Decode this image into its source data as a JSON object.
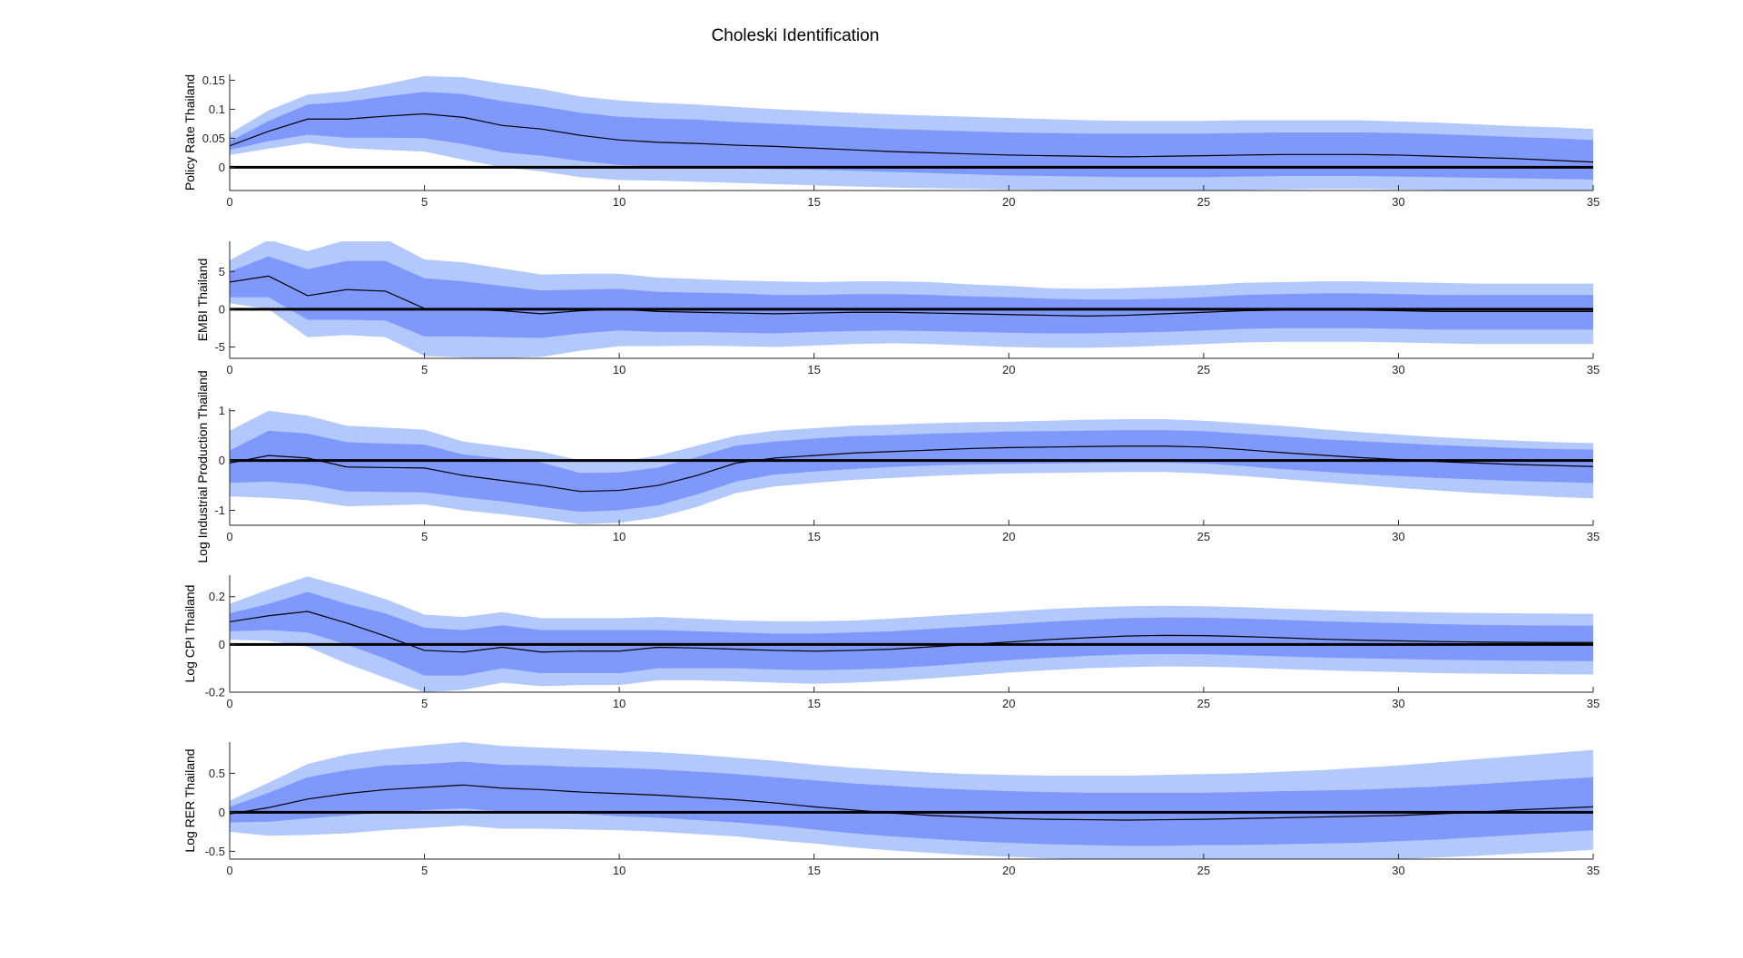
{
  "title": "Choleski Identification",
  "colors": {
    "outer_band": "#b3c9fb",
    "inner_band": "#7e99fb",
    "median": "#000000",
    "zero_line": "#000000",
    "axis": "#262626"
  },
  "chart_data": [
    {
      "type": "area",
      "ylabel": "Policy Rate Thailand",
      "xlim": [
        0,
        35
      ],
      "ylim": [
        -0.04,
        0.16
      ],
      "xticks": [
        0,
        5,
        10,
        15,
        20,
        25,
        30,
        35
      ],
      "yticks": [
        0,
        0.05,
        0.1,
        0.15
      ],
      "ytick_labels": [
        "0",
        "0.05",
        "0.1",
        "0.15"
      ],
      "x": [
        0,
        1,
        2,
        3,
        4,
        5,
        6,
        7,
        8,
        9,
        10,
        11,
        12,
        13,
        14,
        15,
        16,
        17,
        18,
        19,
        20,
        21,
        22,
        23,
        24,
        25,
        26,
        27,
        28,
        29,
        30,
        31,
        32,
        33,
        34,
        35
      ],
      "median": [
        0.037,
        0.062,
        0.083,
        0.083,
        0.088,
        0.092,
        0.086,
        0.072,
        0.066,
        0.055,
        0.047,
        0.043,
        0.041,
        0.038,
        0.036,
        0.033,
        0.03,
        0.027,
        0.025,
        0.023,
        0.021,
        0.02,
        0.019,
        0.018,
        0.019,
        0.02,
        0.021,
        0.022,
        0.022,
        0.022,
        0.021,
        0.019,
        0.017,
        0.015,
        0.012,
        0.009
      ],
      "inner_upper": [
        0.045,
        0.08,
        0.108,
        0.113,
        0.122,
        0.13,
        0.126,
        0.114,
        0.105,
        0.094,
        0.087,
        0.084,
        0.082,
        0.078,
        0.075,
        0.072,
        0.069,
        0.066,
        0.064,
        0.062,
        0.06,
        0.059,
        0.058,
        0.058,
        0.058,
        0.058,
        0.059,
        0.06,
        0.06,
        0.06,
        0.059,
        0.057,
        0.055,
        0.052,
        0.05,
        0.047
      ],
      "inner_lower": [
        0.03,
        0.045,
        0.056,
        0.051,
        0.051,
        0.05,
        0.04,
        0.026,
        0.02,
        0.011,
        0.004,
        0.001,
        0.0,
        -0.002,
        -0.003,
        -0.004,
        -0.006,
        -0.008,
        -0.01,
        -0.012,
        -0.014,
        -0.015,
        -0.016,
        -0.017,
        -0.017,
        -0.017,
        -0.016,
        -0.015,
        -0.015,
        -0.015,
        -0.016,
        -0.017,
        -0.018,
        -0.019,
        -0.02,
        -0.021
      ],
      "outer_upper": [
        0.058,
        0.098,
        0.125,
        0.131,
        0.143,
        0.157,
        0.155,
        0.144,
        0.135,
        0.122,
        0.115,
        0.111,
        0.108,
        0.104,
        0.1,
        0.097,
        0.094,
        0.091,
        0.089,
        0.087,
        0.085,
        0.083,
        0.081,
        0.08,
        0.08,
        0.08,
        0.081,
        0.081,
        0.081,
        0.081,
        0.079,
        0.077,
        0.074,
        0.071,
        0.069,
        0.066
      ],
      "outer_lower": [
        0.021,
        0.032,
        0.042,
        0.033,
        0.03,
        0.027,
        0.013,
        0.0,
        -0.007,
        -0.017,
        -0.022,
        -0.023,
        -0.025,
        -0.027,
        -0.029,
        -0.031,
        -0.033,
        -0.035,
        -0.036,
        -0.037,
        -0.038,
        -0.039,
        -0.04,
        -0.04,
        -0.04,
        -0.04,
        -0.039,
        -0.038,
        -0.037,
        -0.037,
        -0.038,
        -0.039,
        -0.04,
        -0.04,
        -0.04,
        -0.04
      ]
    },
    {
      "type": "area",
      "ylabel": "EMBI Thailand",
      "xlim": [
        0,
        35
      ],
      "ylim": [
        -6.5,
        9
      ],
      "xticks": [
        0,
        5,
        10,
        15,
        20,
        25,
        30,
        35
      ],
      "yticks": [
        -5,
        0,
        5
      ],
      "ytick_labels": [
        "-5",
        "0",
        "5"
      ],
      "x": [
        0,
        1,
        2,
        3,
        4,
        5,
        6,
        7,
        8,
        9,
        10,
        11,
        12,
        13,
        14,
        15,
        16,
        17,
        18,
        19,
        20,
        21,
        22,
        23,
        24,
        25,
        26,
        27,
        28,
        29,
        30,
        31,
        32,
        33,
        34,
        35
      ],
      "median": [
        3.6,
        4.4,
        1.8,
        2.6,
        2.4,
        0.1,
        0.0,
        -0.2,
        -0.6,
        -0.2,
        0.0,
        -0.3,
        -0.4,
        -0.5,
        -0.6,
        -0.5,
        -0.4,
        -0.4,
        -0.5,
        -0.6,
        -0.7,
        -0.8,
        -0.9,
        -0.8,
        -0.6,
        -0.4,
        -0.2,
        -0.1,
        -0.1,
        -0.1,
        -0.2,
        -0.3,
        -0.3,
        -0.3,
        -0.3,
        -0.3
      ],
      "inner_upper": [
        5.0,
        7.0,
        5.3,
        6.4,
        6.4,
        4.1,
        3.7,
        3.1,
        2.5,
        2.6,
        2.7,
        2.3,
        2.2,
        2.1,
        1.9,
        1.9,
        2.0,
        2.0,
        1.9,
        1.7,
        1.6,
        1.4,
        1.3,
        1.3,
        1.4,
        1.6,
        1.9,
        2.0,
        2.1,
        2.1,
        2.0,
        1.9,
        1.9,
        1.9,
        1.9,
        1.9
      ],
      "inner_lower": [
        1.6,
        1.6,
        -1.4,
        -1.4,
        -1.5,
        -3.6,
        -3.6,
        -3.7,
        -3.8,
        -3.2,
        -2.8,
        -3.0,
        -3.0,
        -3.1,
        -3.2,
        -3.0,
        -2.9,
        -2.8,
        -2.9,
        -3.0,
        -3.1,
        -3.2,
        -3.2,
        -3.1,
        -3.0,
        -2.8,
        -2.6,
        -2.5,
        -2.5,
        -2.5,
        -2.6,
        -2.7,
        -2.7,
        -2.7,
        -2.7,
        -2.7
      ],
      "outer_upper": [
        6.5,
        9.2,
        7.7,
        9.2,
        9.3,
        6.6,
        6.2,
        5.4,
        4.6,
        4.7,
        4.7,
        4.2,
        4.0,
        3.8,
        3.7,
        3.6,
        3.7,
        3.7,
        3.6,
        3.3,
        3.1,
        2.8,
        2.7,
        2.8,
        3.0,
        3.2,
        3.5,
        3.6,
        3.7,
        3.7,
        3.6,
        3.5,
        3.4,
        3.4,
        3.4,
        3.4
      ],
      "outer_lower": [
        0.8,
        0.0,
        -3.7,
        -3.4,
        -3.7,
        -6.2,
        -6.4,
        -6.5,
        -6.3,
        -5.5,
        -4.9,
        -4.9,
        -4.8,
        -4.9,
        -5.0,
        -4.8,
        -4.6,
        -4.5,
        -4.6,
        -4.8,
        -5.0,
        -5.1,
        -5.1,
        -5.0,
        -4.8,
        -4.6,
        -4.4,
        -4.3,
        -4.3,
        -4.3,
        -4.4,
        -4.5,
        -4.6,
        -4.6,
        -4.6,
        -4.6
      ]
    },
    {
      "type": "area",
      "ylabel": "Log Industrial Production Thailand",
      "xlim": [
        0,
        35
      ],
      "ylim": [
        -1.3,
        1.05
      ],
      "xticks": [
        0,
        5,
        10,
        15,
        20,
        25,
        30,
        35
      ],
      "yticks": [
        -1,
        0,
        1
      ],
      "ytick_labels": [
        "-1",
        "0",
        "1"
      ],
      "x": [
        0,
        1,
        2,
        3,
        4,
        5,
        6,
        7,
        8,
        9,
        10,
        11,
        12,
        13,
        14,
        15,
        16,
        17,
        18,
        19,
        20,
        21,
        22,
        23,
        24,
        25,
        26,
        27,
        28,
        29,
        30,
        31,
        32,
        33,
        34,
        35
      ],
      "median": [
        -0.05,
        0.1,
        0.05,
        -0.13,
        -0.14,
        -0.15,
        -0.3,
        -0.4,
        -0.5,
        -0.62,
        -0.6,
        -0.5,
        -0.3,
        -0.05,
        0.05,
        0.1,
        0.15,
        0.18,
        0.21,
        0.24,
        0.26,
        0.27,
        0.28,
        0.29,
        0.29,
        0.27,
        0.22,
        0.16,
        0.11,
        0.06,
        0.02,
        -0.02,
        -0.05,
        -0.08,
        -0.1,
        -0.12
      ],
      "inner_upper": [
        0.2,
        0.6,
        0.54,
        0.37,
        0.34,
        0.32,
        0.12,
        0.04,
        -0.04,
        -0.25,
        -0.24,
        -0.14,
        0.07,
        0.3,
        0.38,
        0.44,
        0.49,
        0.51,
        0.54,
        0.56,
        0.58,
        0.59,
        0.6,
        0.61,
        0.61,
        0.59,
        0.54,
        0.49,
        0.43,
        0.39,
        0.35,
        0.31,
        0.28,
        0.25,
        0.23,
        0.22
      ],
      "inner_lower": [
        -0.45,
        -0.42,
        -0.48,
        -0.62,
        -0.63,
        -0.64,
        -0.74,
        -0.82,
        -0.93,
        -1.03,
        -1.0,
        -0.9,
        -0.68,
        -0.42,
        -0.28,
        -0.22,
        -0.17,
        -0.13,
        -0.1,
        -0.08,
        -0.07,
        -0.06,
        -0.05,
        -0.04,
        -0.04,
        -0.06,
        -0.11,
        -0.17,
        -0.22,
        -0.27,
        -0.31,
        -0.35,
        -0.38,
        -0.41,
        -0.43,
        -0.45
      ],
      "outer_upper": [
        0.6,
        1.0,
        0.9,
        0.7,
        0.66,
        0.62,
        0.38,
        0.28,
        0.18,
        0.0,
        -0.02,
        0.1,
        0.3,
        0.5,
        0.6,
        0.65,
        0.7,
        0.72,
        0.75,
        0.77,
        0.78,
        0.8,
        0.82,
        0.83,
        0.83,
        0.8,
        0.75,
        0.7,
        0.63,
        0.57,
        0.52,
        0.47,
        0.43,
        0.4,
        0.37,
        0.35
      ],
      "outer_lower": [
        -0.72,
        -0.75,
        -0.8,
        -0.92,
        -0.9,
        -0.88,
        -1.0,
        -1.08,
        -1.17,
        -1.28,
        -1.25,
        -1.14,
        -0.93,
        -0.65,
        -0.52,
        -0.45,
        -0.39,
        -0.35,
        -0.31,
        -0.28,
        -0.26,
        -0.25,
        -0.24,
        -0.23,
        -0.23,
        -0.26,
        -0.31,
        -0.37,
        -0.43,
        -0.49,
        -0.55,
        -0.6,
        -0.65,
        -0.69,
        -0.73,
        -0.76
      ]
    },
    {
      "type": "area",
      "ylabel": "Log CPI Thailand",
      "xlim": [
        0,
        35
      ],
      "ylim": [
        -0.2,
        0.29
      ],
      "xticks": [
        0,
        5,
        10,
        15,
        20,
        25,
        30,
        35
      ],
      "yticks": [
        -0.2,
        0,
        0.2
      ],
      "ytick_labels": [
        "-0.2",
        "0",
        "0.2"
      ],
      "x": [
        0,
        1,
        2,
        3,
        4,
        5,
        6,
        7,
        8,
        9,
        10,
        11,
        12,
        13,
        14,
        15,
        16,
        17,
        18,
        19,
        20,
        21,
        22,
        23,
        24,
        25,
        26,
        27,
        28,
        29,
        30,
        31,
        32,
        33,
        34,
        35
      ],
      "median": [
        0.095,
        0.12,
        0.138,
        0.09,
        0.035,
        -0.025,
        -0.032,
        -0.012,
        -0.032,
        -0.028,
        -0.028,
        -0.012,
        -0.015,
        -0.02,
        -0.025,
        -0.028,
        -0.025,
        -0.02,
        -0.01,
        0.0,
        0.01,
        0.02,
        0.028,
        0.035,
        0.038,
        0.037,
        0.033,
        0.028,
        0.022,
        0.018,
        0.015,
        0.012,
        0.01,
        0.009,
        0.008,
        0.008
      ],
      "inner_upper": [
        0.13,
        0.17,
        0.22,
        0.17,
        0.13,
        0.07,
        0.06,
        0.08,
        0.06,
        0.06,
        0.06,
        0.06,
        0.055,
        0.05,
        0.045,
        0.045,
        0.05,
        0.055,
        0.065,
        0.075,
        0.085,
        0.095,
        0.103,
        0.11,
        0.113,
        0.112,
        0.108,
        0.103,
        0.097,
        0.093,
        0.089,
        0.085,
        0.082,
        0.08,
        0.079,
        0.078
      ],
      "inner_lower": [
        0.055,
        0.06,
        0.05,
        0.0,
        -0.06,
        -0.13,
        -0.13,
        -0.1,
        -0.12,
        -0.12,
        -0.12,
        -0.1,
        -0.1,
        -0.1,
        -0.105,
        -0.108,
        -0.105,
        -0.1,
        -0.09,
        -0.078,
        -0.066,
        -0.056,
        -0.048,
        -0.042,
        -0.04,
        -0.041,
        -0.045,
        -0.05,
        -0.055,
        -0.058,
        -0.061,
        -0.064,
        -0.066,
        -0.068,
        -0.069,
        -0.07
      ],
      "outer_upper": [
        0.17,
        0.23,
        0.285,
        0.24,
        0.19,
        0.125,
        0.115,
        0.135,
        0.11,
        0.11,
        0.11,
        0.115,
        0.108,
        0.1,
        0.097,
        0.097,
        0.1,
        0.108,
        0.118,
        0.128,
        0.138,
        0.148,
        0.155,
        0.16,
        0.162,
        0.16,
        0.156,
        0.15,
        0.145,
        0.14,
        0.137,
        0.134,
        0.132,
        0.13,
        0.129,
        0.128
      ],
      "outer_lower": [
        0.02,
        0.015,
        -0.01,
        -0.08,
        -0.14,
        -0.2,
        -0.19,
        -0.16,
        -0.175,
        -0.17,
        -0.17,
        -0.15,
        -0.15,
        -0.155,
        -0.16,
        -0.165,
        -0.16,
        -0.153,
        -0.142,
        -0.13,
        -0.118,
        -0.108,
        -0.1,
        -0.095,
        -0.092,
        -0.093,
        -0.097,
        -0.103,
        -0.108,
        -0.112,
        -0.116,
        -0.12,
        -0.122,
        -0.124,
        -0.125,
        -0.126
      ]
    },
    {
      "type": "area",
      "ylabel": "Log RER Thailand",
      "xlim": [
        0,
        35
      ],
      "ylim": [
        -0.6,
        0.9
      ],
      "xticks": [
        0,
        5,
        10,
        15,
        20,
        25,
        30,
        35
      ],
      "yticks": [
        -0.5,
        0,
        0.5
      ],
      "ytick_labels": [
        "-0.5",
        "0",
        "0.5"
      ],
      "x": [
        0,
        1,
        2,
        3,
        4,
        5,
        6,
        7,
        8,
        9,
        10,
        11,
        12,
        13,
        14,
        15,
        16,
        17,
        18,
        19,
        20,
        21,
        22,
        23,
        24,
        25,
        26,
        27,
        28,
        29,
        30,
        31,
        32,
        33,
        34,
        35
      ],
      "median": [
        -0.02,
        0.06,
        0.17,
        0.24,
        0.29,
        0.32,
        0.35,
        0.31,
        0.29,
        0.26,
        0.24,
        0.22,
        0.19,
        0.16,
        0.12,
        0.07,
        0.03,
        -0.01,
        -0.04,
        -0.06,
        -0.08,
        -0.09,
        -0.095,
        -0.1,
        -0.095,
        -0.09,
        -0.08,
        -0.07,
        -0.06,
        -0.05,
        -0.04,
        -0.02,
        0.0,
        0.03,
        0.05,
        0.07
      ],
      "inner_upper": [
        0.07,
        0.25,
        0.45,
        0.54,
        0.6,
        0.62,
        0.65,
        0.61,
        0.6,
        0.58,
        0.57,
        0.55,
        0.52,
        0.49,
        0.45,
        0.41,
        0.37,
        0.34,
        0.31,
        0.29,
        0.27,
        0.26,
        0.25,
        0.25,
        0.25,
        0.25,
        0.26,
        0.27,
        0.28,
        0.29,
        0.31,
        0.33,
        0.36,
        0.39,
        0.42,
        0.45
      ],
      "inner_lower": [
        -0.13,
        -0.12,
        -0.08,
        -0.04,
        0.0,
        0.03,
        0.05,
        0.01,
        0.0,
        -0.02,
        -0.05,
        -0.07,
        -0.1,
        -0.13,
        -0.17,
        -0.22,
        -0.27,
        -0.31,
        -0.34,
        -0.37,
        -0.39,
        -0.41,
        -0.42,
        -0.43,
        -0.43,
        -0.42,
        -0.42,
        -0.41,
        -0.4,
        -0.39,
        -0.37,
        -0.35,
        -0.32,
        -0.29,
        -0.26,
        -0.23
      ],
      "outer_upper": [
        0.15,
        0.38,
        0.62,
        0.74,
        0.81,
        0.86,
        0.9,
        0.85,
        0.83,
        0.81,
        0.79,
        0.77,
        0.74,
        0.7,
        0.66,
        0.61,
        0.57,
        0.54,
        0.51,
        0.49,
        0.48,
        0.47,
        0.47,
        0.47,
        0.48,
        0.49,
        0.5,
        0.52,
        0.54,
        0.57,
        0.6,
        0.64,
        0.68,
        0.72,
        0.76,
        0.8
      ],
      "outer_lower": [
        -0.25,
        -0.3,
        -0.29,
        -0.27,
        -0.23,
        -0.2,
        -0.17,
        -0.21,
        -0.21,
        -0.22,
        -0.23,
        -0.25,
        -0.28,
        -0.31,
        -0.36,
        -0.4,
        -0.45,
        -0.49,
        -0.52,
        -0.55,
        -0.57,
        -0.59,
        -0.6,
        -0.6,
        -0.6,
        -0.6,
        -0.6,
        -0.6,
        -0.6,
        -0.6,
        -0.6,
        -0.58,
        -0.56,
        -0.53,
        -0.51,
        -0.48
      ]
    }
  ]
}
